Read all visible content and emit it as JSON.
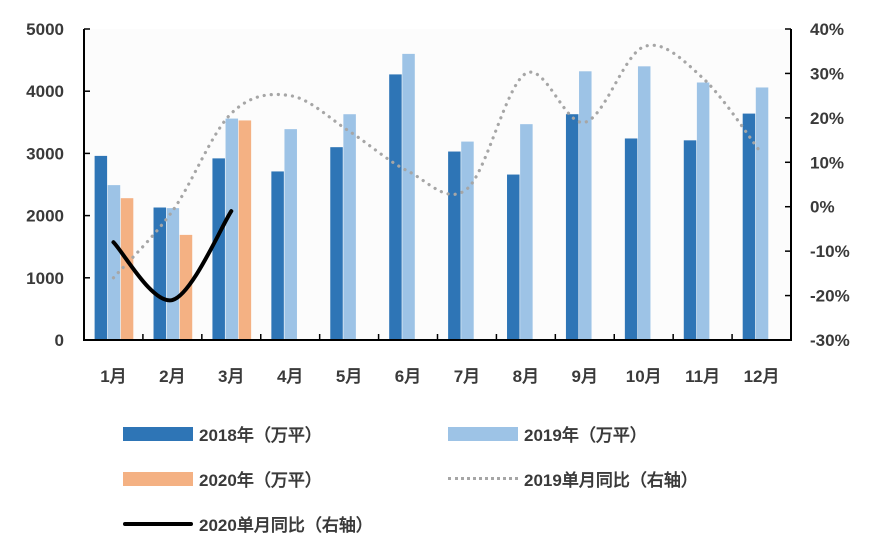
{
  "chart_data": {
    "type": "bar",
    "title": "",
    "xlabel": "",
    "ylabel": "",
    "categories": [
      "1月",
      "2月",
      "3月",
      "4月",
      "5月",
      "6月",
      "7月",
      "8月",
      "9月",
      "10月",
      "11月",
      "12月"
    ],
    "ylim": [
      0,
      5000
    ],
    "yticks": [
      "0",
      "1000",
      "2000",
      "3000",
      "4000",
      "5000"
    ],
    "y2lim": [
      -30,
      40
    ],
    "y2ticks": [
      "-30%",
      "-20%",
      "-10%",
      "0%",
      "10%",
      "20%",
      "30%",
      "40%"
    ],
    "grid": false,
    "legend_position": "bottom",
    "series": [
      {
        "name": "2018年（万平）",
        "type": "bar",
        "axis": "left",
        "color": "#2E75B6",
        "values": [
          2960,
          2130,
          2920,
          2710,
          3100,
          4270,
          3030,
          2660,
          3630,
          3240,
          3210,
          3640
        ]
      },
      {
        "name": "2019年（万平）",
        "type": "bar",
        "axis": "left",
        "color": "#9DC3E6",
        "values": [
          2490,
          2120,
          3560,
          3390,
          3630,
          4600,
          3190,
          3470,
          4320,
          4400,
          4140,
          4060
        ]
      },
      {
        "name": "2020年（万平）",
        "type": "bar",
        "axis": "left",
        "color": "#F4B183",
        "values": [
          2280,
          1690,
          3530,
          null,
          null,
          null,
          null,
          null,
          null,
          null,
          null,
          null
        ]
      },
      {
        "name": "2019单月同比（右轴）",
        "type": "line",
        "style": "dotted",
        "axis": "right",
        "color": "#A6A6A6",
        "values": [
          -16,
          -1,
          21,
          25,
          17,
          8,
          4,
          30,
          19,
          36,
          29,
          12
        ]
      },
      {
        "name": "2020单月同比（右轴）",
        "type": "line",
        "style": "solid",
        "axis": "right",
        "color": "#000000",
        "values": [
          -8,
          -21,
          -1,
          null,
          null,
          null,
          null,
          null,
          null,
          null,
          null,
          null
        ]
      }
    ]
  }
}
